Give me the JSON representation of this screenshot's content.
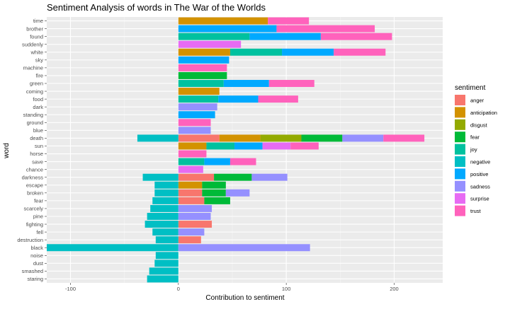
{
  "chart_data": {
    "type": "bar",
    "orientation": "horizontal",
    "stacked": true,
    "title": "Sentiment Analysis of words in The War of the Worlds",
    "xlabel": "Contribution to sentiment",
    "ylabel": "word",
    "xlim": [
      -122,
      245
    ],
    "xticks": [
      -100,
      0,
      100,
      200
    ],
    "grid": true,
    "legend_position": "right",
    "legend_title": "sentiment",
    "categories": [
      "time",
      "brother",
      "found",
      "suddenly",
      "white",
      "sky",
      "machine",
      "fire",
      "green",
      "coming",
      "food",
      "dark",
      "standing",
      "ground",
      "blue",
      "death",
      "sun",
      "horse",
      "save",
      "chance",
      "darkness",
      "escape",
      "broken",
      "fear",
      "scarcely",
      "pine",
      "fighting",
      "fell",
      "destruction",
      "black",
      "noise",
      "dust",
      "smashed",
      "staring"
    ],
    "series": [
      {
        "name": "anger",
        "color": "#F8766D",
        "values": [
          0,
          0,
          0,
          0,
          0,
          0,
          0,
          0,
          0,
          0,
          0,
          0,
          0,
          0,
          0,
          38,
          0,
          0,
          0,
          0,
          33,
          0,
          22,
          24,
          0,
          0,
          31,
          0,
          21,
          0,
          0,
          0,
          0,
          0
        ]
      },
      {
        "name": "anticipation",
        "color": "#D39200",
        "values": [
          83,
          0,
          0,
          0,
          48,
          0,
          0,
          0,
          0,
          38,
          0,
          0,
          0,
          0,
          0,
          38,
          26,
          0,
          0,
          0,
          0,
          22,
          0,
          0,
          0,
          0,
          0,
          0,
          0,
          0,
          0,
          0,
          0,
          0
        ]
      },
      {
        "name": "disgust",
        "color": "#93AA00",
        "values": [
          0,
          0,
          0,
          0,
          0,
          0,
          0,
          0,
          0,
          0,
          0,
          0,
          0,
          0,
          0,
          38,
          0,
          0,
          0,
          0,
          0,
          0,
          0,
          0,
          0,
          0,
          0,
          0,
          0,
          0,
          0,
          0,
          0,
          0
        ]
      },
      {
        "name": "fear",
        "color": "#00BA38",
        "values": [
          0,
          0,
          0,
          0,
          0,
          0,
          0,
          45,
          0,
          0,
          0,
          0,
          0,
          0,
          0,
          38,
          0,
          0,
          0,
          0,
          35,
          22,
          22,
          24,
          0,
          0,
          0,
          0,
          0,
          0,
          0,
          0,
          0,
          0
        ]
      },
      {
        "name": "joy",
        "color": "#00C19F",
        "values": [
          0,
          0,
          66,
          0,
          48,
          0,
          0,
          0,
          42,
          0,
          37,
          0,
          0,
          0,
          0,
          0,
          26,
          0,
          24,
          0,
          0,
          0,
          0,
          0,
          0,
          0,
          0,
          0,
          0,
          0,
          0,
          0,
          0,
          0
        ]
      },
      {
        "name": "negative",
        "color": "#00B9E3",
        "values": [
          0,
          0,
          0,
          0,
          0,
          0,
          0,
          0,
          0,
          0,
          0,
          0,
          0,
          0,
          0,
          -38,
          0,
          0,
          0,
          0,
          -33,
          -22,
          -22,
          -24,
          -26,
          -29,
          -31,
          -24,
          -21,
          -122,
          -21,
          -22,
          -27,
          -29
        ]
      },
      {
        "name": "positive",
        "color": "#619CFF",
        "values": [
          0,
          91,
          66,
          0,
          48,
          47,
          0,
          0,
          42,
          0,
          37,
          0,
          34,
          0,
          0,
          0,
          26,
          0,
          24,
          0,
          0,
          0,
          0,
          0,
          0,
          0,
          0,
          0,
          0,
          0,
          0,
          0,
          0,
          0
        ]
      },
      {
        "name": "sadness",
        "color": "#DB72FB",
        "values": [
          0,
          0,
          0,
          0,
          0,
          0,
          0,
          0,
          0,
          0,
          0,
          36,
          0,
          0,
          30,
          38,
          0,
          0,
          0,
          0,
          33,
          0,
          22,
          0,
          31,
          30,
          0,
          24,
          0,
          122,
          0,
          0,
          0,
          0
        ]
      },
      {
        "name": "surprise",
        "color": "#FF61C3",
        "values": [
          0,
          0,
          0,
          58,
          0,
          0,
          0,
          0,
          0,
          0,
          0,
          0,
          0,
          0,
          0,
          0,
          26,
          0,
          0,
          23,
          0,
          0,
          0,
          0,
          0,
          0,
          0,
          0,
          0,
          0,
          0,
          0,
          0,
          0
        ]
      },
      {
        "name": "trust",
        "color": "#FF4DA6",
        "values": [
          38,
          91,
          66,
          0,
          48,
          0,
          45,
          0,
          42,
          0,
          37,
          0,
          0,
          30,
          0,
          38,
          26,
          26,
          24,
          0,
          0,
          0,
          0,
          0,
          0,
          0,
          0,
          0,
          0,
          0,
          0,
          0,
          0,
          0
        ]
      }
    ],
    "legend_colors": {
      "anger": "#F8766D",
      "anticipation": "#D39200",
      "disgust": "#93AA00",
      "fear": "#00BA38",
      "joy": "#00C19F",
      "negative": "#00BFC4",
      "positive": "#00A9FF",
      "sadness": "#9590FF",
      "surprise": "#E76BF3",
      "trust": "#FF62BC"
    }
  }
}
